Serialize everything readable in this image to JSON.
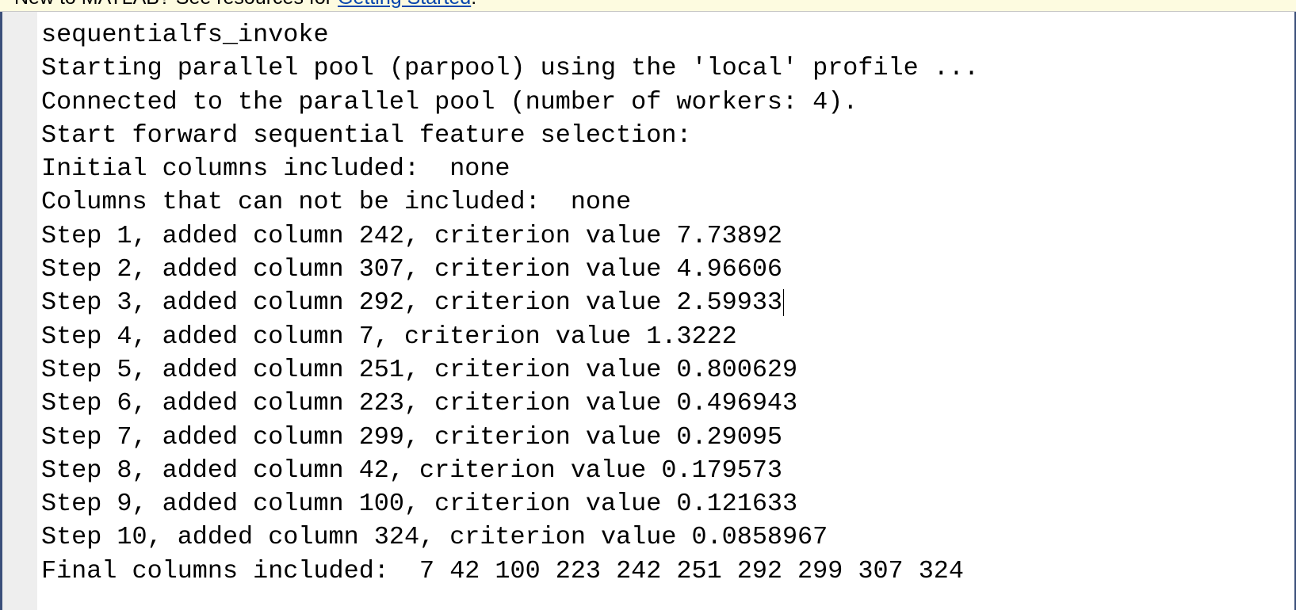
{
  "notice": {
    "text": "New to MATLAB? See resources for ",
    "link": "Getting Started",
    "suffix": "."
  },
  "command_window": {
    "lines": [
      "sequentialfs_invoke",
      "Starting parallel pool (parpool) using the 'local' profile ...",
      "Connected to the parallel pool (number of workers: 4).",
      "Start forward sequential feature selection:",
      "Initial columns included:  none",
      "Columns that can not be included:  none",
      "Step 1, added column 242, criterion value 7.73892",
      "Step 2, added column 307, criterion value 4.96606",
      "Step 3, added column 292, criterion value 2.59933",
      "Step 4, added column 7, criterion value 1.3222",
      "Step 5, added column 251, criterion value 0.800629",
      "Step 6, added column 223, criterion value 0.496943",
      "Step 7, added column 299, criterion value 0.29095",
      "Step 8, added column 42, criterion value 0.179573",
      "Step 9, added column 100, criterion value 0.121633",
      "Step 10, added column 324, criterion value 0.0858967",
      "Final columns included:  7 42 100 223 242 251 292 299 307 324"
    ]
  }
}
